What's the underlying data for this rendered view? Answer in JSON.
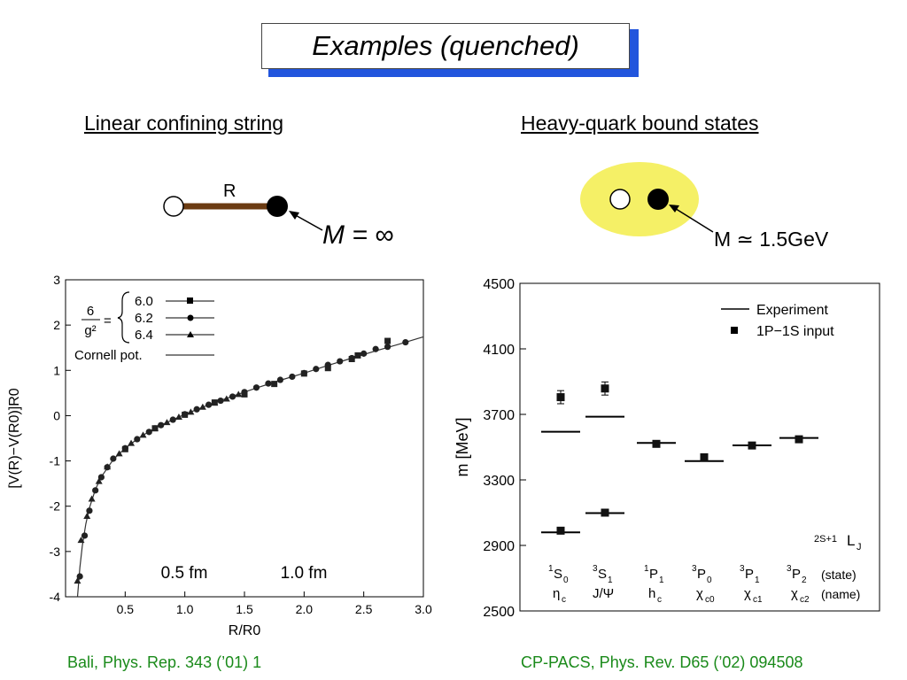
{
  "slide": {
    "title": "Examples (quenched)",
    "left_heading": "Linear confining string",
    "right_heading": "Heavy-quark bound states",
    "left_citation": "Bali, Phys. Rep. 343 (’01) 1",
    "right_citation": "CP-PACS,  Phys. Rev. D65  (’02) 094508"
  },
  "diagrams": {
    "string": {
      "separation_label": "R",
      "mass_label": "M = ∞"
    },
    "bound_state": {
      "mass_label": "M ≃ 1.5GeV"
    }
  },
  "colors": {
    "title_shadow": "#2255dd",
    "citation": "#1a8a1a",
    "string": "#6b3b12",
    "blob": "#f5f066"
  },
  "chart_data": [
    {
      "type": "scatter",
      "title": "",
      "xlabel": "R/R0",
      "ylabel": "[V(R)−V(R0)]R0",
      "xlim": [
        0.0,
        3.0
      ],
      "ylim": [
        -4,
        3
      ],
      "xticks": [
        "0.5",
        "1.0",
        "1.5",
        "2.0",
        "2.5",
        "3.0"
      ],
      "yticks": [
        "-4",
        "-3",
        "-2",
        "-1",
        "0",
        "1",
        "2",
        "3"
      ],
      "legend": {
        "lhs_num": "6",
        "lhs_den": "g²",
        "series_names": [
          "6.0",
          "6.2",
          "6.4"
        ],
        "curve_name": "Cornell pot."
      },
      "annotations": [
        "0.5 fm",
        "1.0 fm"
      ],
      "curve": {
        "name": "Cornell pot.",
        "x": [
          0.1,
          0.12,
          0.14,
          0.17,
          0.2,
          0.25,
          0.3,
          0.4,
          0.5,
          0.6,
          0.7,
          0.8,
          1.0,
          1.2,
          1.4,
          1.6,
          1.8,
          2.0,
          2.2,
          2.4,
          2.6,
          2.8,
          3.0
        ],
        "y": [
          -4.0,
          -3.35,
          -2.88,
          -2.39,
          -2.04,
          -1.63,
          -1.35,
          -0.97,
          -0.72,
          -0.52,
          -0.35,
          -0.21,
          0.03,
          0.24,
          0.43,
          0.61,
          0.78,
          0.94,
          1.11,
          1.27,
          1.43,
          1.58,
          1.74
        ]
      },
      "series": [
        {
          "name": "6.0",
          "marker": "square",
          "x": [
            0.5,
            0.75,
            1.0,
            1.25,
            1.5,
            1.75,
            2.0,
            2.2,
            2.4,
            2.45,
            2.7
          ],
          "y": [
            -0.74,
            -0.28,
            0.02,
            0.29,
            0.47,
            0.7,
            0.93,
            1.05,
            1.25,
            1.33,
            1.65
          ]
        },
        {
          "name": "6.2",
          "marker": "circle",
          "x": [
            0.12,
            0.16,
            0.2,
            0.25,
            0.3,
            0.35,
            0.4,
            0.5,
            0.6,
            0.7,
            0.8,
            0.9,
            1.0,
            1.1,
            1.2,
            1.3,
            1.4,
            1.5,
            1.6,
            1.7,
            1.8,
            1.9,
            2.0,
            2.1,
            2.2,
            2.3,
            2.4,
            2.5,
            2.6,
            2.7,
            2.85
          ],
          "y": [
            -3.55,
            -2.65,
            -2.1,
            -1.65,
            -1.36,
            -1.14,
            -0.95,
            -0.72,
            -0.52,
            -0.36,
            -0.21,
            -0.09,
            0.03,
            0.14,
            0.24,
            0.33,
            0.42,
            0.52,
            0.62,
            0.71,
            0.79,
            0.86,
            0.94,
            1.03,
            1.12,
            1.2,
            1.27,
            1.37,
            1.47,
            1.52,
            1.62
          ]
        },
        {
          "name": "6.4",
          "marker": "triangle",
          "x": [
            0.1,
            0.13,
            0.18,
            0.22,
            0.28,
            0.35,
            0.45,
            0.55,
            0.65,
            0.75,
            0.85,
            0.95,
            1.05,
            1.15,
            1.25,
            1.35,
            1.45
          ],
          "y": [
            -3.65,
            -2.75,
            -2.22,
            -1.84,
            -1.45,
            -1.13,
            -0.84,
            -0.61,
            -0.43,
            -0.28,
            -0.15,
            -0.03,
            0.08,
            0.19,
            0.28,
            0.37,
            0.47
          ]
        }
      ]
    },
    {
      "type": "scatter",
      "title": "",
      "xlabel": "",
      "ylabel": "m [MeV]",
      "ylim": [
        2500,
        4500
      ],
      "yticks": [
        "2500",
        "2900",
        "3300",
        "3700",
        "4100",
        "4500"
      ],
      "categories": [
        "1S0",
        "3S1",
        "1P1",
        "3P0",
        "3P1",
        "3P2"
      ],
      "state_labels": [
        {
          "sup": "1",
          "main": "S",
          "sub": "0"
        },
        {
          "sup": "3",
          "main": "S",
          "sub": "1"
        },
        {
          "sup": "1",
          "main": "P",
          "sub": "1"
        },
        {
          "sup": "3",
          "main": "P",
          "sub": "0"
        },
        {
          "sup": "3",
          "main": "P",
          "sub": "1"
        },
        {
          "sup": "3",
          "main": "P",
          "sub": "2"
        }
      ],
      "name_labels": [
        {
          "main": "η",
          "sub": "c"
        },
        {
          "main": "J/Ψ",
          "sub": ""
        },
        {
          "main": "h",
          "sub": "c"
        },
        {
          "main": "χ",
          "sub": "c0"
        },
        {
          "main": "χ",
          "sub": "c1"
        },
        {
          "main": "χ",
          "sub": "c2"
        }
      ],
      "row_captions": [
        "(state)",
        "(name)"
      ],
      "notation": {
        "sup": "2S+1",
        "main": "L",
        "sub": "J"
      },
      "legend": [
        "Experiment",
        "1P−1S input"
      ],
      "experiment": {
        "name": "Experiment",
        "ground": [
          2980,
          3097,
          3526,
          3415,
          3511,
          3556
        ],
        "excited": [
          3594,
          3686
        ]
      },
      "lattice": {
        "name": "1P−1S input",
        "ground": [
          2990,
          3100,
          3520,
          3438,
          3510,
          3548
        ],
        "excited": {
          "categories": [
            0,
            1
          ],
          "values": [
            3805,
            3858
          ],
          "errors": [
            40,
            40
          ]
        }
      }
    }
  ]
}
